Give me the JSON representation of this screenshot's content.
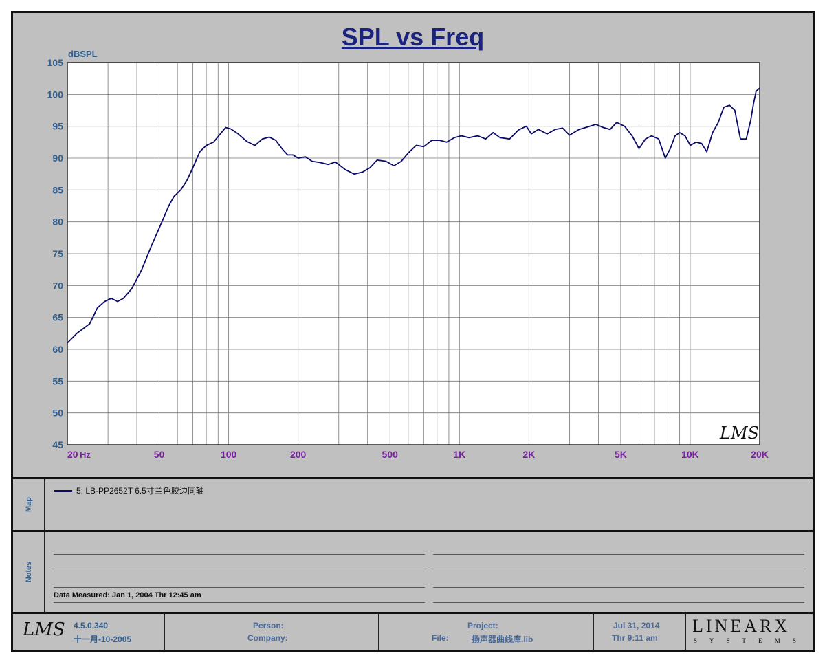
{
  "title": "SPL vs Freq",
  "ylabel": "dBSPL",
  "watermark": "LMS",
  "map": {
    "label": "Map",
    "legend": "5: LB-PP2652T 6.5寸兰色胶边同轴",
    "line_color": "#0a0a6a"
  },
  "notes": {
    "label": "Notes",
    "measured": "Data Measured: Jan  1, 2004  Thr 12:45 am"
  },
  "footer": {
    "logo": "LMS",
    "version": "4.5.0.340",
    "build_date": "十一月-10-2005",
    "person_label": "Person:",
    "company_label": "Company:",
    "project_label": "Project:",
    "file_label": "File:",
    "file_value": "扬声器曲线库.lib",
    "date": "Jul 31, 2014",
    "time": "Thr  9:11 am",
    "brand": "LINEARX",
    "brand_sub": "S Y S T E M S"
  },
  "chart_data": {
    "type": "line",
    "title": "SPL vs Freq",
    "xlabel": "Hz",
    "ylabel": "dBSPL",
    "x_scale": "log",
    "xlim": [
      20,
      20000
    ],
    "ylim": [
      45,
      105
    ],
    "grid": true,
    "x_ticks": [
      {
        "value": 20,
        "label": "20"
      },
      {
        "value": 50,
        "label": "50"
      },
      {
        "value": 100,
        "label": "100"
      },
      {
        "value": 200,
        "label": "200"
      },
      {
        "value": 500,
        "label": "500"
      },
      {
        "value": 1000,
        "label": "1K"
      },
      {
        "value": 2000,
        "label": "2K"
      },
      {
        "value": 5000,
        "label": "5K"
      },
      {
        "value": 10000,
        "label": "10K"
      },
      {
        "value": 20000,
        "label": "20K"
      }
    ],
    "x_unit_label": "Hz",
    "y_ticks": [
      45,
      50,
      55,
      60,
      65,
      70,
      75,
      80,
      85,
      90,
      95,
      100,
      105
    ],
    "series": [
      {
        "name": "5: LB-PP2652T 6.5寸兰色胶边同轴",
        "color": "#0a0a6a",
        "x": [
          20,
          22,
          25,
          27,
          29,
          31,
          33,
          35,
          38,
          42,
          46,
          50,
          55,
          58,
          62,
          66,
          70,
          75,
          80,
          86,
          92,
          97,
          102,
          110,
          120,
          130,
          140,
          150,
          160,
          170,
          180,
          190,
          200,
          215,
          230,
          250,
          270,
          290,
          320,
          350,
          380,
          410,
          440,
          480,
          520,
          560,
          600,
          650,
          700,
          760,
          820,
          880,
          950,
          1020,
          1100,
          1200,
          1300,
          1400,
          1500,
          1650,
          1800,
          1950,
          2050,
          2200,
          2400,
          2600,
          2800,
          3000,
          3300,
          3600,
          3900,
          4200,
          4500,
          4800,
          5200,
          5600,
          6000,
          6400,
          6800,
          7300,
          7800,
          8200,
          8600,
          9000,
          9500,
          10000,
          10600,
          11200,
          11800,
          12500,
          13200,
          14000,
          14800,
          15600,
          16500,
          17500,
          18300,
          18800,
          19300,
          20000
        ],
        "y": [
          61,
          62.5,
          64,
          66.5,
          67.5,
          68,
          67.5,
          68,
          69.5,
          72.5,
          76,
          79,
          82.5,
          84,
          85,
          86.5,
          88.5,
          91,
          92,
          92.5,
          93.8,
          94.8,
          94.6,
          93.8,
          92.6,
          92,
          93,
          93.3,
          92.8,
          91.5,
          90.5,
          90.5,
          90,
          90.2,
          89.5,
          89.3,
          89,
          89.4,
          88.2,
          87.5,
          87.8,
          88.5,
          89.7,
          89.5,
          88.8,
          89.5,
          90.8,
          92,
          91.8,
          92.8,
          92.8,
          92.5,
          93.2,
          93.5,
          93.2,
          93.5,
          93,
          94,
          93.2,
          93,
          94.4,
          95,
          93.8,
          94.5,
          93.8,
          94.5,
          94.7,
          93.6,
          94.5,
          94.9,
          95.3,
          94.8,
          94.5,
          95.6,
          95,
          93.5,
          91.5,
          93,
          93.5,
          93,
          90,
          91.5,
          93.5,
          94,
          93.5,
          92,
          92.5,
          92.3,
          91,
          94,
          95.5,
          98,
          98.3,
          97.5,
          93,
          93,
          96,
          98.5,
          100.5,
          101
        ]
      }
    ]
  }
}
